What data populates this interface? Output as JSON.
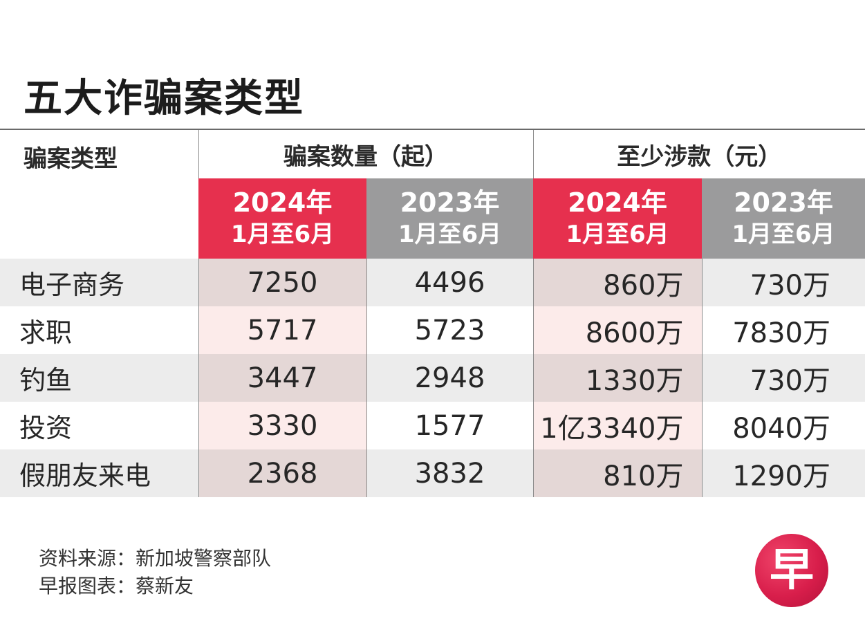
{
  "title": "五大诈骗案类型",
  "header": {
    "type_label": "骗案类型",
    "group_count": "骗案数量（起）",
    "group_amount": "至少涉款（元）",
    "periods": [
      {
        "year": "2024年",
        "range": "1月至6月"
      },
      {
        "year": "2023年",
        "range": "1月至6月"
      },
      {
        "year": "2024年",
        "range": "1月至6月"
      },
      {
        "year": "2023年",
        "range": "1月至6月"
      }
    ]
  },
  "rows": [
    {
      "type": "电子商务",
      "cases_2024": "7250",
      "cases_2023": "4496",
      "amount_2024": "860万",
      "amount_2023": "730万"
    },
    {
      "type": "求职",
      "cases_2024": "5717",
      "cases_2023": "5723",
      "amount_2024": "8600万",
      "amount_2023": "7830万"
    },
    {
      "type": "钓鱼",
      "cases_2024": "3447",
      "cases_2023": "2948",
      "amount_2024": "1330万",
      "amount_2023": "730万"
    },
    {
      "type": "投资",
      "cases_2024": "3330",
      "cases_2023": "1577",
      "amount_2024": "1亿3340万",
      "amount_2023": "8040万"
    },
    {
      "type": "假朋友来电",
      "cases_2024": "2368",
      "cases_2023": "3832",
      "amount_2024": "810万",
      "amount_2023": "1290万"
    }
  ],
  "footer": {
    "source": "资料来源：新加坡警察部队",
    "credit": "早报图表：蔡新友"
  },
  "logo_text": "早",
  "colors": {
    "highlight_red": "#e6304e",
    "gray": "#9b9b9c",
    "row_tint_odd": "#ececec",
    "row_tint_highlight": "#fcebea"
  },
  "chart_data": {
    "type": "table",
    "title": "五大诈骗案类型",
    "columns": [
      "骗案类型",
      "骗案数量（起） 2024年1月至6月",
      "骗案数量（起） 2023年1月至6月",
      "至少涉款（元） 2024年1月至6月",
      "至少涉款（元） 2023年1月至6月"
    ],
    "categories": [
      "电子商务",
      "求职",
      "钓鱼",
      "投资",
      "假朋友来电"
    ],
    "series": [
      {
        "name": "骗案数量（起） 2024年1月至6月",
        "values": [
          7250,
          5717,
          3447,
          3330,
          2368
        ]
      },
      {
        "name": "骗案数量（起） 2023年1月至6月",
        "values": [
          4496,
          5723,
          2948,
          1577,
          3832
        ]
      },
      {
        "name": "至少涉款（元） 2024年1月至6月",
        "values": [
          8600000,
          86000000,
          13300000,
          133400000,
          8100000
        ]
      },
      {
        "name": "至少涉款（元） 2023年1月至6月",
        "values": [
          7300000,
          78300000,
          7300000,
          80400000,
          12900000
        ]
      }
    ]
  }
}
